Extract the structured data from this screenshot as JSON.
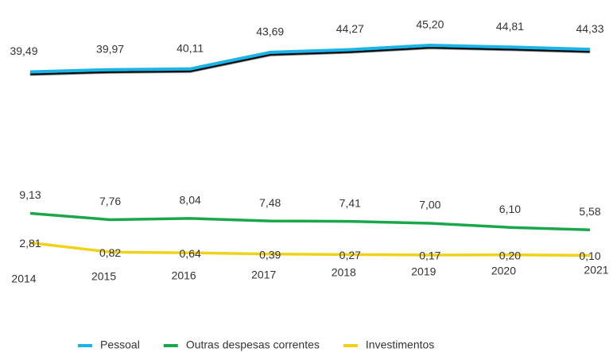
{
  "chart_data": {
    "type": "line",
    "categories": [
      "2014",
      "2015",
      "2016",
      "2017",
      "2018",
      "2019",
      "2020",
      "2021"
    ],
    "series": [
      {
        "name": "Pessoal",
        "color": "#1ab4e6",
        "values": [
          39.49,
          39.97,
          40.11,
          43.69,
          44.27,
          45.2,
          44.81,
          44.33
        ],
        "value_labels": [
          "39,49",
          "39,97",
          "40,11",
          "43,69",
          "44,27",
          "45,20",
          "44,81",
          "44,33"
        ]
      },
      {
        "name": "Outras despesas correntes",
        "color": "#1aa64a",
        "values": [
          9.13,
          7.76,
          8.04,
          7.48,
          7.41,
          7.0,
          6.1,
          5.58
        ],
        "value_labels": [
          "9,13",
          "7,76",
          "8,04",
          "7,48",
          "7,41",
          "7,00",
          "6,10",
          "5,58"
        ]
      },
      {
        "name": "Investimentos",
        "color": "#f0d21a",
        "values": [
          2.81,
          0.82,
          0.64,
          0.39,
          0.27,
          0.17,
          0.2,
          0.1
        ],
        "value_labels": [
          "2,81",
          "0,82",
          "0,64",
          "0,39",
          "0,27",
          "0,17",
          "0,20",
          "0,10"
        ]
      }
    ],
    "legend": "bottom"
  }
}
